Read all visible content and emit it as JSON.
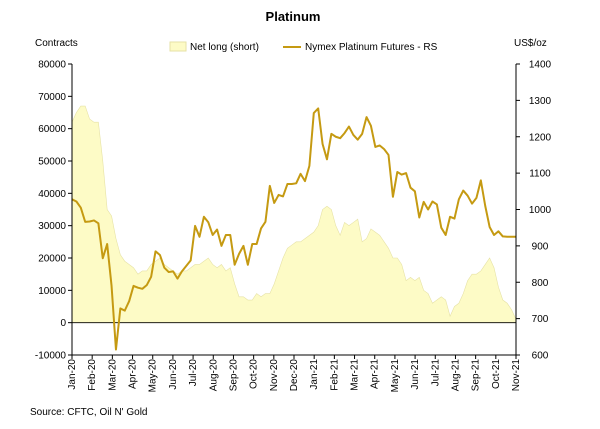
{
  "chart_data": {
    "type": "area+line",
    "title": "Platinum",
    "left_axis_label": "Contracts",
    "right_axis_label": "US$/oz",
    "source": "Source: CFTC, Oil N' Gold",
    "left_ylim": [
      -10000,
      80000
    ],
    "left_ticks": [
      "-10000",
      "0",
      "10000",
      "20000",
      "30000",
      "40000",
      "50000",
      "60000",
      "70000",
      "80000"
    ],
    "right_ylim": [
      600,
      1400
    ],
    "right_ticks": [
      "600",
      "700",
      "800",
      "900",
      "1000",
      "1100",
      "1200",
      "1300",
      "1400"
    ],
    "x_ticks": [
      "Jan-20",
      "Feb-20",
      "Mar-20",
      "Apr-20",
      "May-20",
      "Jun-20",
      "Jul-20",
      "Aug-20",
      "Sep-20",
      "Oct-20",
      "Nov-20",
      "Dec-20",
      "Jan-21",
      "Feb-21",
      "Mar-21",
      "Apr-21",
      "May-21",
      "Jun-21",
      "Jul-21",
      "Aug-21",
      "Sep-21",
      "Oct-21",
      "Nov-21"
    ],
    "weeks": 102,
    "series": [
      {
        "name": "Net long (short)",
        "kind": "area",
        "axis": "left",
        "color": "#fdfbc6",
        "stroke": "#e6e2a6",
        "values": [
          62000,
          65000,
          67000,
          67000,
          63000,
          62000,
          62000,
          50000,
          35000,
          33000,
          26000,
          21000,
          19000,
          18000,
          17000,
          15000,
          16000,
          16000,
          18000,
          19000,
          20000,
          18000,
          17000,
          16000,
          15000,
          16000,
          16000,
          17000,
          18000,
          18000,
          19000,
          20000,
          18000,
          17000,
          18000,
          16000,
          17000,
          12000,
          8000,
          8000,
          7000,
          7000,
          9000,
          8000,
          9000,
          9000,
          12000,
          16000,
          20000,
          23000,
          24000,
          25000,
          25000,
          26000,
          27000,
          28000,
          30000,
          35000,
          36000,
          35000,
          30000,
          27000,
          31000,
          30000,
          31000,
          32000,
          25000,
          26000,
          29000,
          28000,
          27000,
          25000,
          23000,
          20000,
          20000,
          18000,
          13000,
          14000,
          13000,
          14000,
          10000,
          9000,
          6000,
          7000,
          8000,
          7000,
          2000,
          5000,
          6000,
          9000,
          13000,
          15000,
          15000,
          16000,
          18000,
          20000,
          17000,
          11000,
          7000,
          6000,
          4000,
          1000
        ]
      },
      {
        "name": "Nymex Platinum Futures - RS",
        "kind": "line",
        "axis": "right",
        "color": "#c59a12",
        "values": [
          1028,
          1022,
          1005,
          966,
          967,
          970,
          962,
          866,
          905,
          790,
          615,
          728,
          722,
          748,
          790,
          785,
          782,
          792,
          815,
          885,
          875,
          840,
          828,
          830,
          810,
          830,
          845,
          860,
          955,
          925,
          980,
          965,
          930,
          945,
          900,
          930,
          930,
          848,
          878,
          900,
          848,
          905,
          905,
          948,
          966,
          1065,
          1018,
          1040,
          1036,
          1070,
          1070,
          1072,
          1098,
          1078,
          1120,
          1265,
          1278,
          1180,
          1138,
          1208,
          1200,
          1196,
          1210,
          1228,
          1205,
          1192,
          1208,
          1254,
          1230,
          1172,
          1176,
          1166,
          1150,
          1035,
          1103,
          1096,
          1100,
          1060,
          1050,
          978,
          1021,
          1000,
          1022,
          1014,
          950,
          930,
          980,
          975,
          1028,
          1052,
          1038,
          1016,
          1032,
          1080,
          1010,
          952,
          930,
          940,
          926,
          925,
          925,
          925
        ]
      }
    ]
  }
}
